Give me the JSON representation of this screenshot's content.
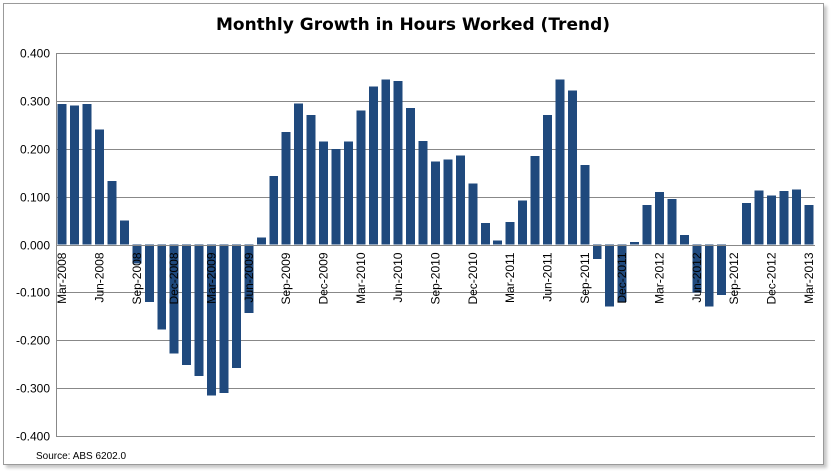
{
  "chart_data": {
    "type": "bar",
    "title": "Monthly Growth in Hours Worked (Trend)",
    "xlabel": "",
    "ylabel": "",
    "ylim": [
      -0.4,
      0.4
    ],
    "yticks": [
      "0.400",
      "0.300",
      "0.200",
      "0.100",
      "0.000",
      "-0.100",
      "-0.200",
      "-0.300",
      "-0.400"
    ],
    "ytick_values": [
      0.4,
      0.3,
      0.2,
      0.1,
      0.0,
      -0.1,
      -0.2,
      -0.3,
      -0.4
    ],
    "grid": true,
    "legend": "none",
    "bar_color": "#1f497d",
    "categories": [
      "Mar-2008",
      "Apr-2008",
      "May-2008",
      "Jun-2008",
      "Jul-2008",
      "Aug-2008",
      "Sep-2008",
      "Oct-2008",
      "Nov-2008",
      "Dec-2008",
      "Jan-2009",
      "Feb-2009",
      "Mar-2009",
      "Apr-2009",
      "May-2009",
      "Jun-2009",
      "Jul-2009",
      "Aug-2009",
      "Sep-2009",
      "Oct-2009",
      "Nov-2009",
      "Dec-2009",
      "Jan-2010",
      "Feb-2010",
      "Mar-2010",
      "Apr-2010",
      "May-2010",
      "Jun-2010",
      "Jul-2010",
      "Aug-2010",
      "Sep-2010",
      "Oct-2010",
      "Nov-2010",
      "Dec-2010",
      "Jan-2011",
      "Feb-2011",
      "Mar-2011",
      "Apr-2011",
      "May-2011",
      "Jun-2011",
      "Jul-2011",
      "Aug-2011",
      "Sep-2011",
      "Oct-2011",
      "Nov-2011",
      "Dec-2011",
      "Jan-2012",
      "Feb-2012",
      "Mar-2012",
      "Apr-2012",
      "May-2012",
      "Jun-2012",
      "Jul-2012",
      "Aug-2012",
      "Sep-2012",
      "Oct-2012",
      "Nov-2012",
      "Dec-2012",
      "Jan-2013",
      "Feb-2013",
      "Mar-2013"
    ],
    "values": [
      0.293,
      0.29,
      0.293,
      0.24,
      0.133,
      0.05,
      -0.04,
      -0.12,
      -0.178,
      -0.228,
      -0.252,
      -0.275,
      -0.315,
      -0.31,
      -0.258,
      -0.143,
      0.015,
      0.143,
      0.235,
      0.295,
      0.27,
      0.215,
      0.2,
      0.215,
      0.28,
      0.33,
      0.345,
      0.342,
      0.285,
      0.216,
      0.173,
      0.178,
      0.186,
      0.127,
      0.045,
      0.008,
      0.047,
      0.092,
      0.185,
      0.27,
      0.345,
      0.322,
      0.166,
      -0.03,
      -0.13,
      -0.12,
      0.005,
      0.083,
      0.11,
      0.095,
      0.02,
      -0.1,
      -0.13,
      -0.105,
      0.0,
      0.087,
      0.113,
      0.102,
      0.112,
      0.115,
      0.082
    ],
    "xtick_labels": [
      "Mar-2008",
      "Jun-2008",
      "Sep-2008",
      "Dec-2008",
      "Mar-2009",
      "Jun-2009",
      "Sep-2009",
      "Dec-2009",
      "Mar-2010",
      "Jun-2010",
      "Sep-2010",
      "Dec-2010",
      "Mar-2011",
      "Jun-2011",
      "Sep-2011",
      "Dec-2011",
      "Mar-2012",
      "Jun-2012",
      "Sep-2012",
      "Dec-2012",
      "Mar-2013"
    ],
    "source": "Source: ABS 6202.0"
  }
}
